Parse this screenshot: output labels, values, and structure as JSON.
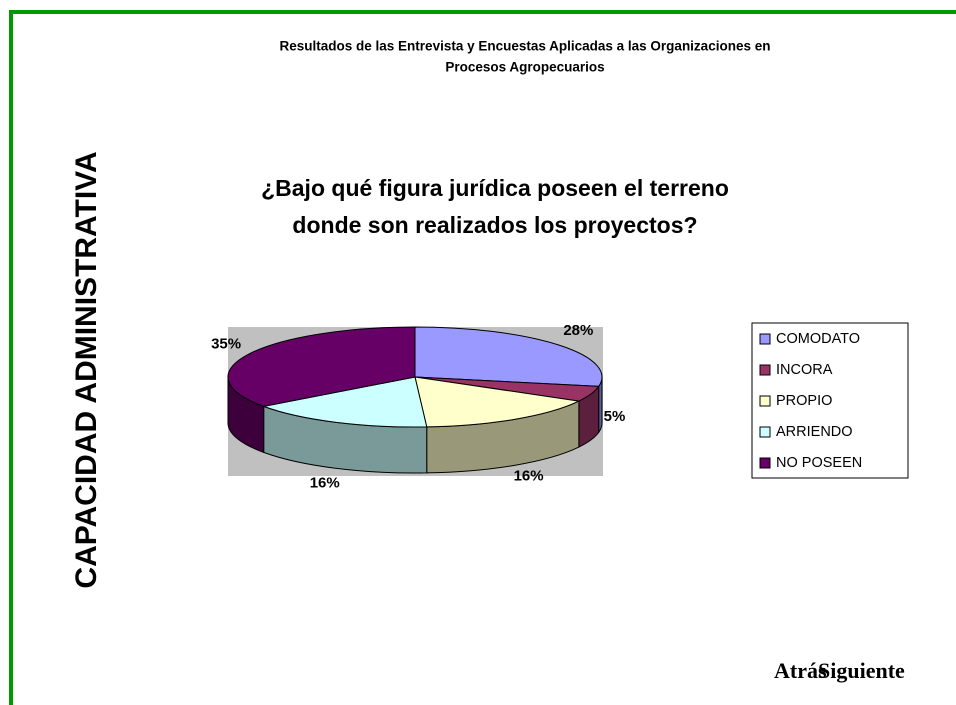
{
  "header": {
    "title": [
      "Resultados de las Entrevista y Encuestas Aplicadas a las Organizaciones en",
      "Procesos Agropecuarios"
    ]
  },
  "section": "CAPACIDAD ADMINISTRATIVA",
  "nav": [
    "Atrás",
    "Siguiente"
  ],
  "chart_data": {
    "type": "pie",
    "title": [
      "¿Bajo qué figura jurídica poseen el terreno",
      "donde son realizados los proyectos?"
    ],
    "categories": [
      "COMODATO",
      "INCORA",
      "PROPIO",
      "ARRIENDO",
      "NO POSEEN"
    ],
    "values": [
      28,
      5,
      16,
      16,
      35
    ],
    "value_labels": [
      "28%",
      "5%",
      "16%",
      "16%",
      "35%"
    ],
    "colors": [
      "#9999ff",
      "#993366",
      "#ffffcc",
      "#ccffff",
      "#660066"
    ],
    "legend": "right"
  }
}
